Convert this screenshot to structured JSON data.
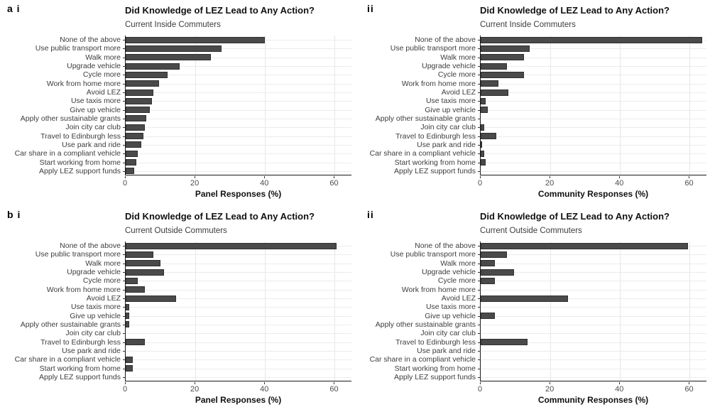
{
  "colors": {
    "bar_fill": "#4a4a4a",
    "bar_border": "#303030",
    "grid_line": "#ececec",
    "axis_line": "#1a1a1a",
    "text": "#3d3d3d"
  },
  "chart_data": [
    {
      "panel_label": "a i",
      "type": "bar",
      "orientation": "horizontal",
      "title": "Did Knowledge of LEZ Lead to Any Action?",
      "subtitle": "Current Inside Commuters",
      "xlabel": "Panel Responses (%)",
      "xlim": [
        0,
        65
      ],
      "xticks": [
        0,
        20,
        40,
        60
      ],
      "grid": "light horizontal line per category, light vertical lines at ticks",
      "legend": "none",
      "categories": [
        "None of the above",
        "Use public transport more",
        "Walk more",
        "Upgrade vehicle",
        "Cycle more",
        "Work from home more",
        "Avoid LEZ",
        "Use taxis more",
        "Give up vehicle",
        "Apply other sustainable grants",
        "Join city car club",
        "Travel to Edinburgh less",
        "Use park and ride",
        "Car share in a compliant vehicle",
        "Start working from home",
        "Apply LEZ support funds"
      ],
      "values": [
        40,
        27.5,
        24.5,
        15.5,
        12,
        9.5,
        8,
        7.5,
        7,
        6,
        5.5,
        5,
        4.5,
        3.5,
        3,
        2.5
      ]
    },
    {
      "panel_label": "ii",
      "type": "bar",
      "orientation": "horizontal",
      "title": "Did Knowledge of LEZ Lead to Any Action?",
      "subtitle": "Current Inside Commuters",
      "xlabel": "Community Responses (%)",
      "xlim": [
        0,
        65
      ],
      "xticks": [
        0,
        20,
        40,
        60
      ],
      "grid": "light horizontal line per category, light vertical lines at ticks",
      "legend": "none",
      "categories": [
        "None of the above",
        "Use public transport more",
        "Walk more",
        "Upgrade vehicle",
        "Cycle more",
        "Work from home more",
        "Avoid LEZ",
        "Use taxis more",
        "Give up vehicle",
        "Apply other sustainable grants",
        "Join city car club",
        "Travel to Edinburgh less",
        "Use park and ride",
        "Car share in a compliant vehicle",
        "Start working from home",
        "Apply LEZ support funds"
      ],
      "values": [
        63.5,
        14,
        12.5,
        7.5,
        12.5,
        5,
        8,
        1.5,
        2,
        0,
        1,
        4.5,
        0.5,
        1,
        1.5,
        0
      ]
    },
    {
      "panel_label": "b i",
      "type": "bar",
      "orientation": "horizontal",
      "title": "Did Knowledge of LEZ Lead to Any Action?",
      "subtitle": "Current Outside Commuters",
      "xlabel": "Panel Responses (%)",
      "xlim": [
        0,
        65
      ],
      "xticks": [
        0,
        20,
        40,
        60
      ],
      "grid": "light horizontal line per category, light vertical lines at ticks",
      "legend": "none",
      "categories": [
        "None of the above",
        "Use public transport more",
        "Walk more",
        "Upgrade vehicle",
        "Cycle more",
        "Work from home more",
        "Avoid LEZ",
        "Use taxis more",
        "Give up vehicle",
        "Apply other sustainable grants",
        "Join city car club",
        "Travel to Edinburgh less",
        "Use park and ride",
        "Car share in a compliant vehicle",
        "Start working from home",
        "Apply LEZ support funds"
      ],
      "values": [
        60.5,
        8,
        10,
        11,
        3.5,
        5.5,
        14.5,
        1,
        1,
        1,
        0,
        5.5,
        0,
        2,
        2,
        0
      ]
    },
    {
      "panel_label": "ii",
      "type": "bar",
      "orientation": "horizontal",
      "title": "Did Knowledge of LEZ Lead to Any Action?",
      "subtitle": "Current Outside Commuters",
      "xlabel": "Community Responses (%)",
      "xlim": [
        0,
        65
      ],
      "xticks": [
        0,
        20,
        40,
        60
      ],
      "grid": "light horizontal line per category, light vertical lines at ticks",
      "legend": "none",
      "categories": [
        "None of the above",
        "Use public transport more",
        "Walk more",
        "Upgrade vehicle",
        "Cycle more",
        "Work from home more",
        "Avoid LEZ",
        "Use taxis more",
        "Give up vehicle",
        "Apply other sustainable grants",
        "Join city car club",
        "Travel to Edinburgh less",
        "Use park and ride",
        "Car share in a compliant vehicle",
        "Start working from home",
        "Apply LEZ support funds"
      ],
      "values": [
        59.5,
        7.5,
        4,
        9.5,
        4,
        0,
        25,
        0,
        4,
        0,
        0,
        13.5,
        0,
        0,
        0,
        0
      ]
    }
  ]
}
